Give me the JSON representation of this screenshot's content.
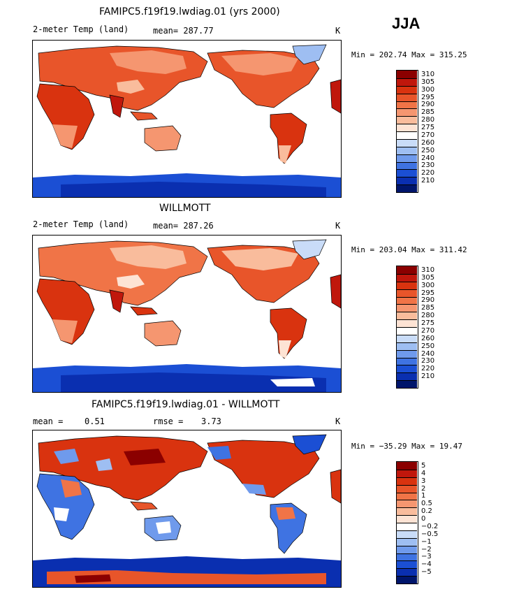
{
  "season": "JJA",
  "panels": [
    {
      "title": "FAMIPC5.f19f19.lwdiag.01 (yrs 2000)",
      "variable": "2-meter Temp (land)",
      "stat": "mean= 287.77",
      "units": "K",
      "minmax": "Min = 202.74 Max = 315.25"
    },
    {
      "title": "WILLMOTT",
      "variable": "2-meter Temp (land)",
      "stat": "mean= 287.26",
      "units": "K",
      "minmax": "Min = 203.04 Max = 311.42"
    },
    {
      "title": "FAMIPC5.f19f19.lwdiag.01 - WILLMOTT",
      "stat_mean_label": "mean =",
      "stat_mean_value": "0.51",
      "stat_rmse_label": "rmse =",
      "stat_rmse_value": "3.73",
      "units": "K",
      "minmax": "Min = −35.29 Max =  19.47"
    }
  ],
  "colorbars": {
    "temp": {
      "labels": [
        "310",
        "305",
        "300",
        "295",
        "290",
        "285",
        "280",
        "275",
        "270",
        "260",
        "250",
        "240",
        "230",
        "220",
        "210"
      ],
      "colors": [
        "#8b0000",
        "#c0170c",
        "#d9330f",
        "#e8552a",
        "#f07447",
        "#f59670",
        "#f9bc9c",
        "#fde3d4",
        "#ffffff",
        "#c9dcf8",
        "#9ebef2",
        "#6f9aec",
        "#3f73e2",
        "#1b4fd4",
        "#0a2fb0",
        "#00156b"
      ]
    },
    "diff": {
      "labels": [
        "5",
        "4",
        "3",
        "2",
        "1",
        "0.5",
        "0.2",
        "0",
        "−0.2",
        "−0.5",
        "−1",
        "−2",
        "−3",
        "−4",
        "−5"
      ],
      "colors": [
        "#8b0000",
        "#c0170c",
        "#d9330f",
        "#e8552a",
        "#f07447",
        "#f59670",
        "#f9bc9c",
        "#fde3d4",
        "#ffffff",
        "#c9dcf8",
        "#9ebef2",
        "#6f9aec",
        "#3f73e2",
        "#1b4fd4",
        "#0a2fb0",
        "#00156b"
      ]
    }
  }
}
